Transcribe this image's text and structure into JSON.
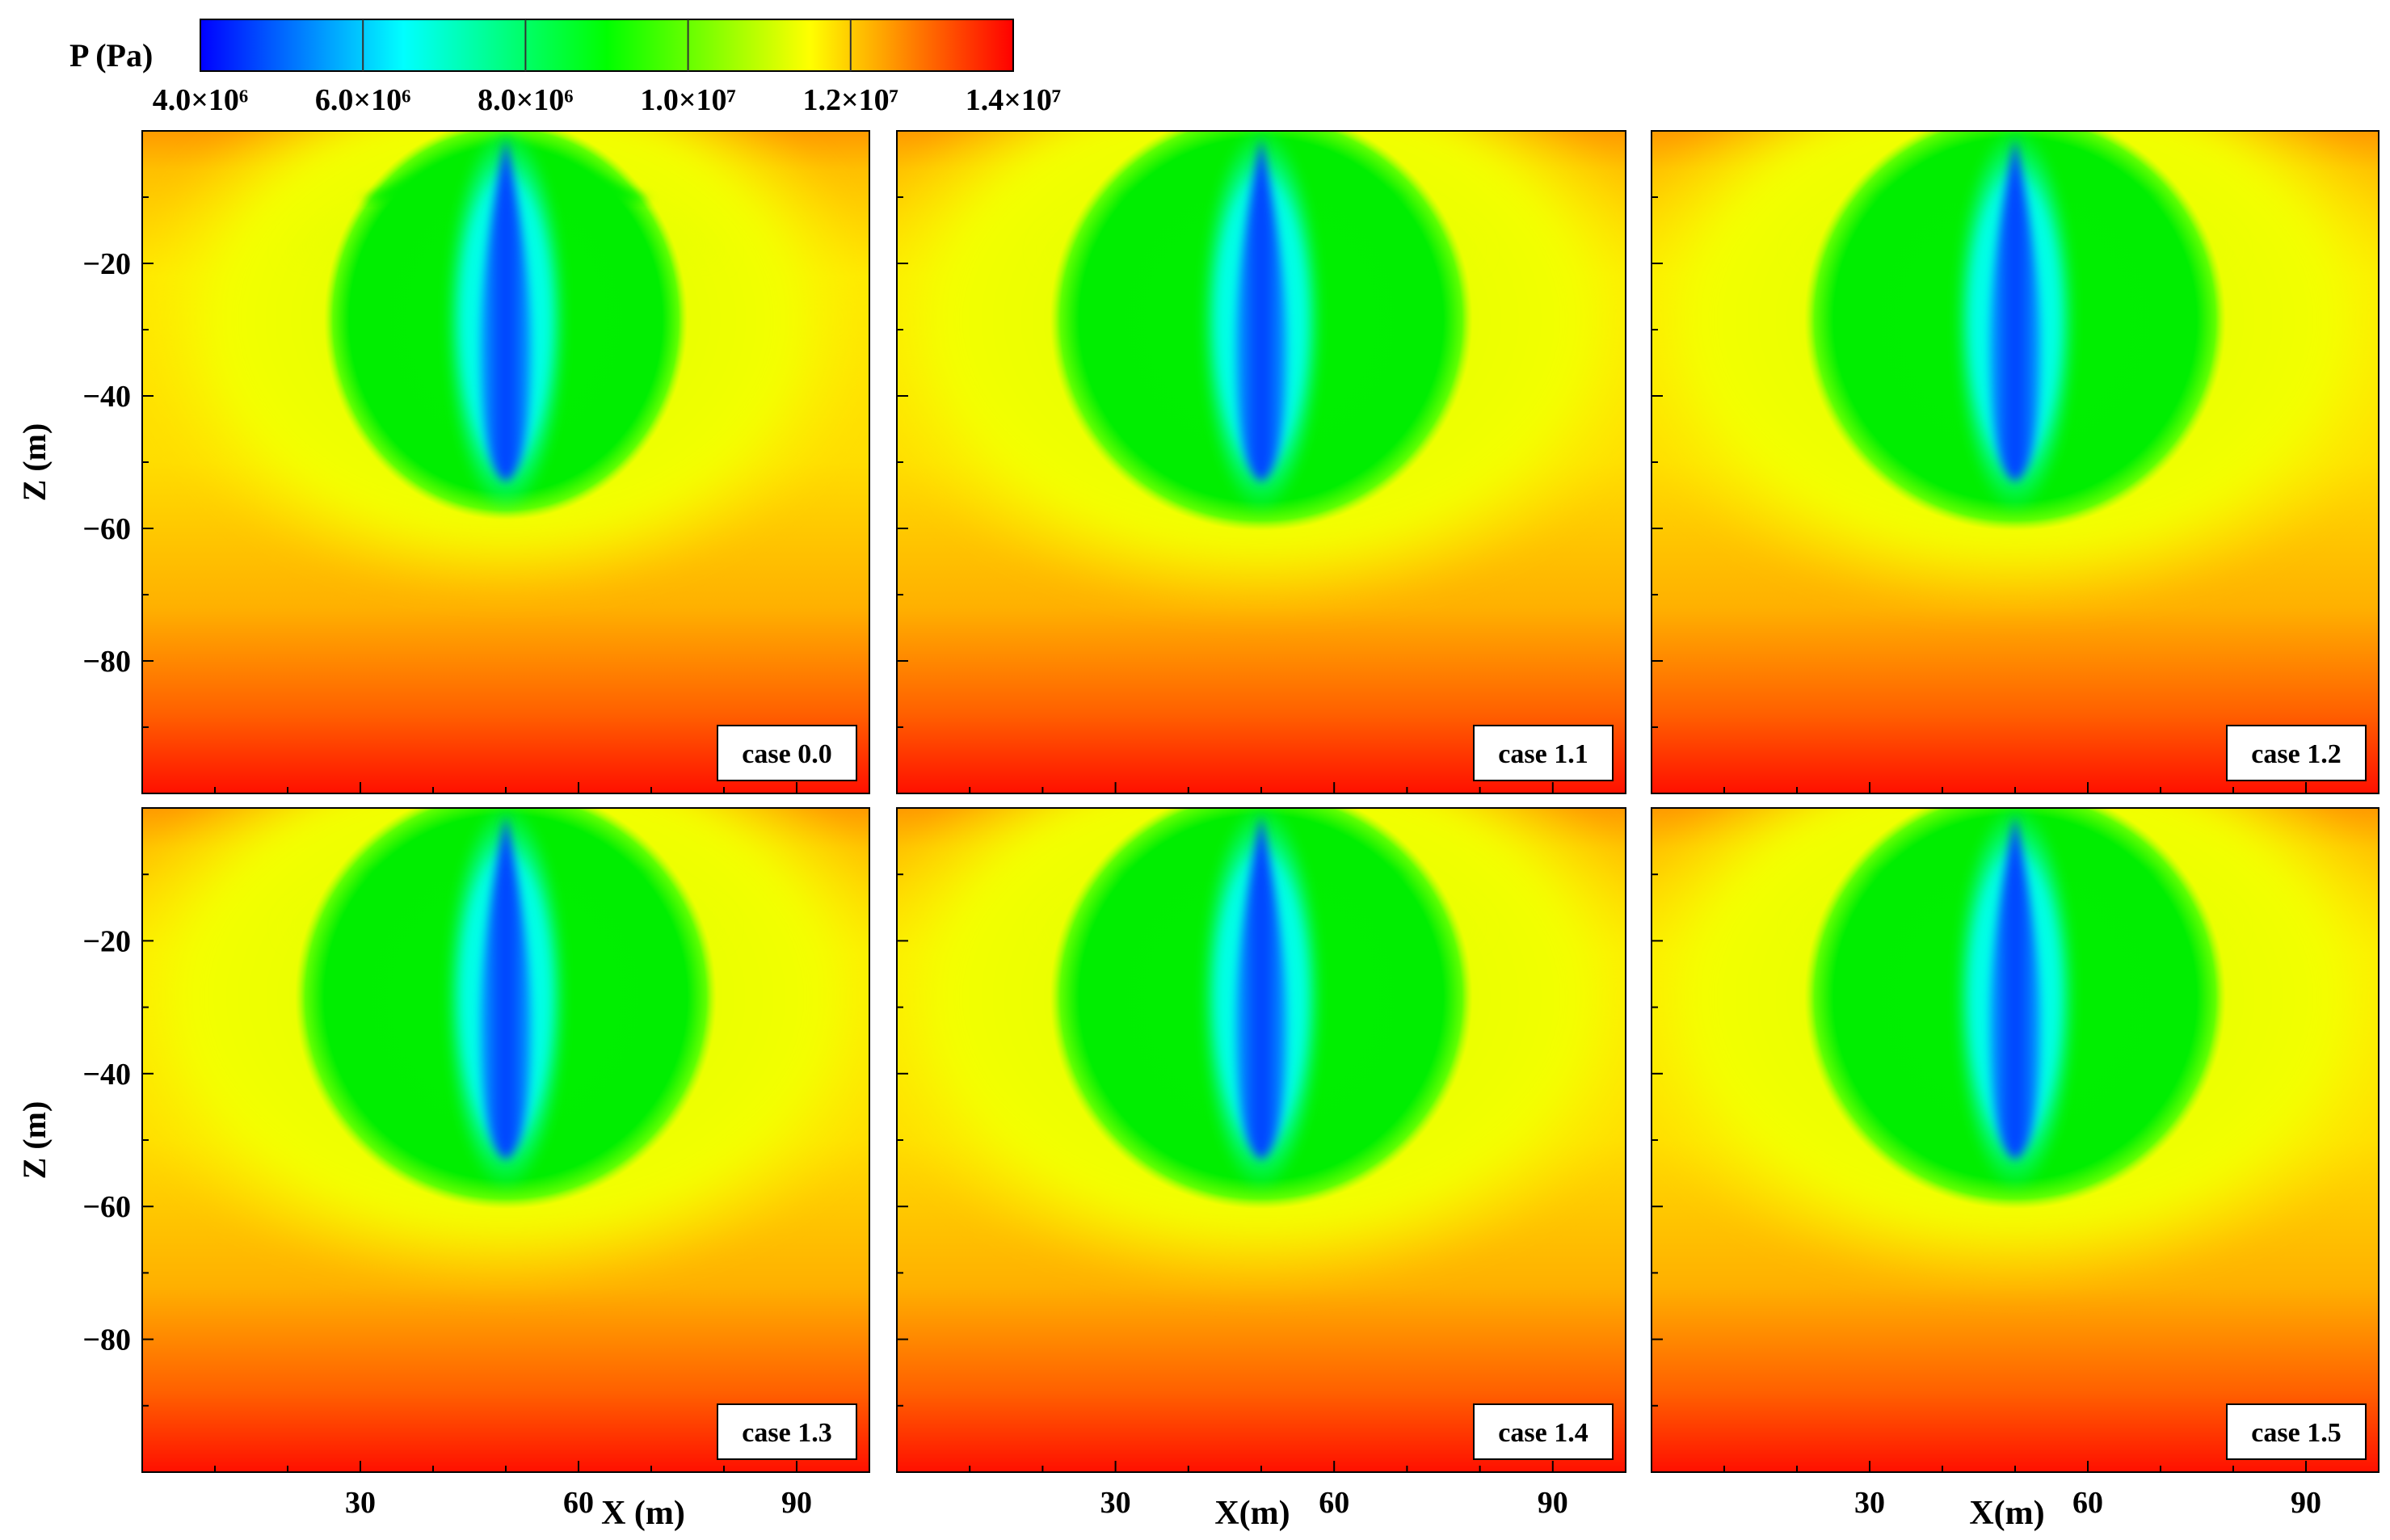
{
  "chart_data": {
    "type": "heatmap",
    "field": "pressure",
    "colorbar": {
      "label": "P  (Pa)",
      "min": 4000000,
      "max": 14000000,
      "tick_values": [
        4000000,
        6000000,
        8000000,
        10000000,
        12000000,
        14000000
      ],
      "tick_labels": [
        "4.0×10⁶",
        "6.0×10⁶",
        "8.0×10⁶",
        "1.0×10⁷",
        "1.2×10⁷",
        "1.4×10⁷"
      ],
      "colors": [
        "#0000ff",
        "#00ffff",
        "#00ff00",
        "#ffff00",
        "#ff0000"
      ]
    },
    "x_range": [
      0,
      100
    ],
    "z_range": [
      -100,
      0
    ],
    "x_ticks": [
      30,
      60,
      90
    ],
    "z_ticks": [
      -20,
      -40,
      -60,
      -80
    ],
    "x_label_bottom": [
      "X (m)",
      "X(m)",
      "X(m)"
    ],
    "z_label": "Z (m)",
    "panels": [
      {
        "label": "case 0.0",
        "green_rx": 25,
        "green_ry": 55,
        "yellow_rx": 52,
        "yellow_ry": 68
      },
      {
        "label": "case 1.1",
        "green_rx": 29,
        "green_ry": 58,
        "yellow_rx": 58,
        "yellow_ry": 72
      },
      {
        "label": "case 1.2",
        "green_rx": 29,
        "green_ry": 58,
        "yellow_rx": 58,
        "yellow_ry": 72
      },
      {
        "label": "case 1.3",
        "green_rx": 29,
        "green_ry": 58,
        "yellow_rx": 58,
        "yellow_ry": 72
      },
      {
        "label": "case 1.4",
        "green_rx": 29,
        "green_ry": 58,
        "yellow_rx": 58,
        "yellow_ry": 72
      },
      {
        "label": "case 1.5",
        "green_rx": 29,
        "green_ry": 58,
        "yellow_rx": 58,
        "yellow_ry": 72
      }
    ],
    "well": {
      "x": 50,
      "z_top": -1,
      "z_bottom": -52
    }
  }
}
